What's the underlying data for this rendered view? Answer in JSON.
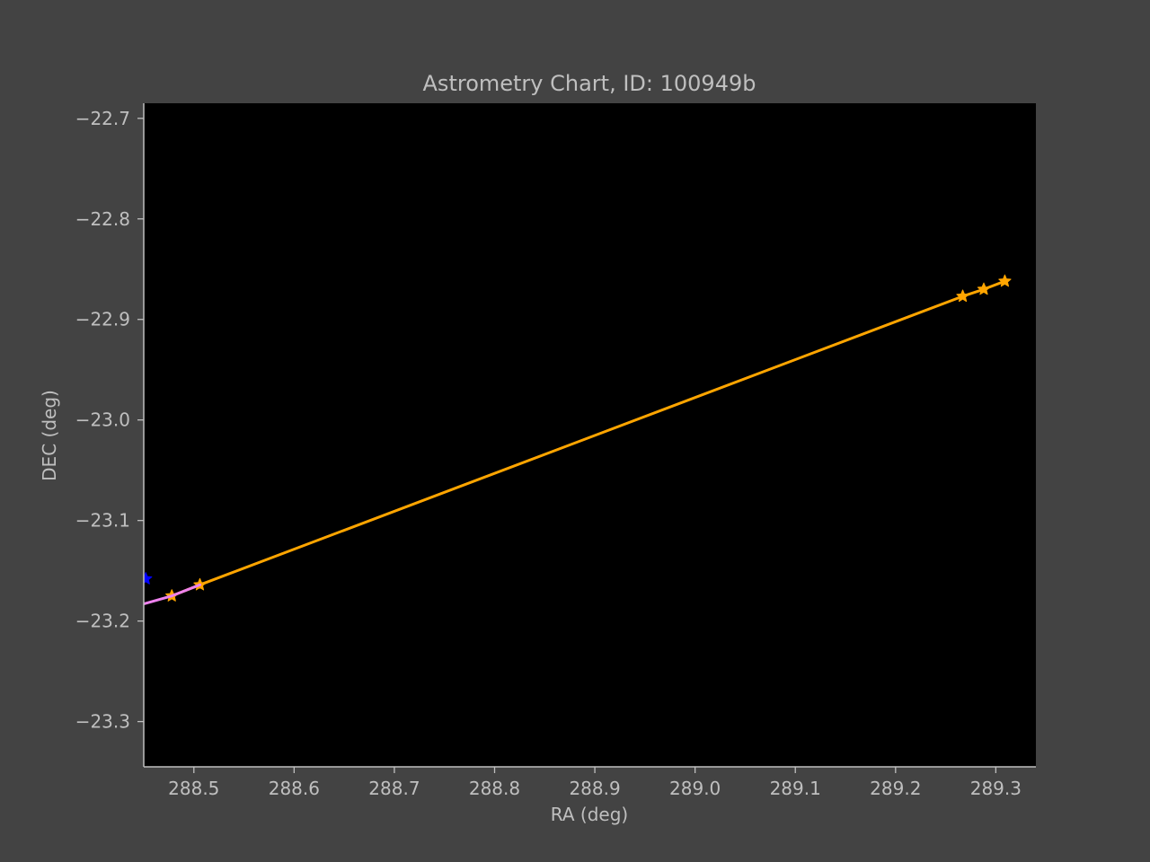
{
  "chart_data": {
    "type": "line",
    "title": "Astrometry Chart, ID: 100949b",
    "xlabel": "RA (deg)",
    "ylabel": "DEC (deg)",
    "xlim": [
      288.45,
      289.34
    ],
    "ylim": [
      -23.345,
      -22.685
    ],
    "grid": false,
    "x_ticks": [
      288.5,
      288.6,
      288.7,
      288.8,
      288.9,
      289.0,
      289.1,
      289.2,
      289.3
    ],
    "x_tick_labels": [
      "288.5",
      "288.6",
      "288.7",
      "288.8",
      "288.9",
      "289.0",
      "289.1",
      "289.2",
      "289.3"
    ],
    "y_ticks": [
      -22.7,
      -22.8,
      -22.9,
      -23.0,
      -23.1,
      -23.2,
      -23.3
    ],
    "y_tick_labels": [
      "−22.7",
      "−22.8",
      "−22.9",
      "−23.0",
      "−23.1",
      "−23.2",
      "−23.3"
    ],
    "series": [
      {
        "color": "#ffa500",
        "marker": "star",
        "x": [
          288.478,
          288.506,
          289.267,
          289.288,
          289.309
        ],
        "y": [
          -23.175,
          -23.164,
          -22.877,
          -22.87,
          -22.862
        ]
      },
      {
        "color": "#ee82ee",
        "marker": "none",
        "x": [
          288.45,
          288.478,
          288.506
        ],
        "y": [
          -23.183,
          -23.175,
          -23.164
        ]
      },
      {
        "color": "#0000ff",
        "marker": "star",
        "x": [
          288.452
        ],
        "y": [
          -23.158
        ]
      }
    ]
  }
}
